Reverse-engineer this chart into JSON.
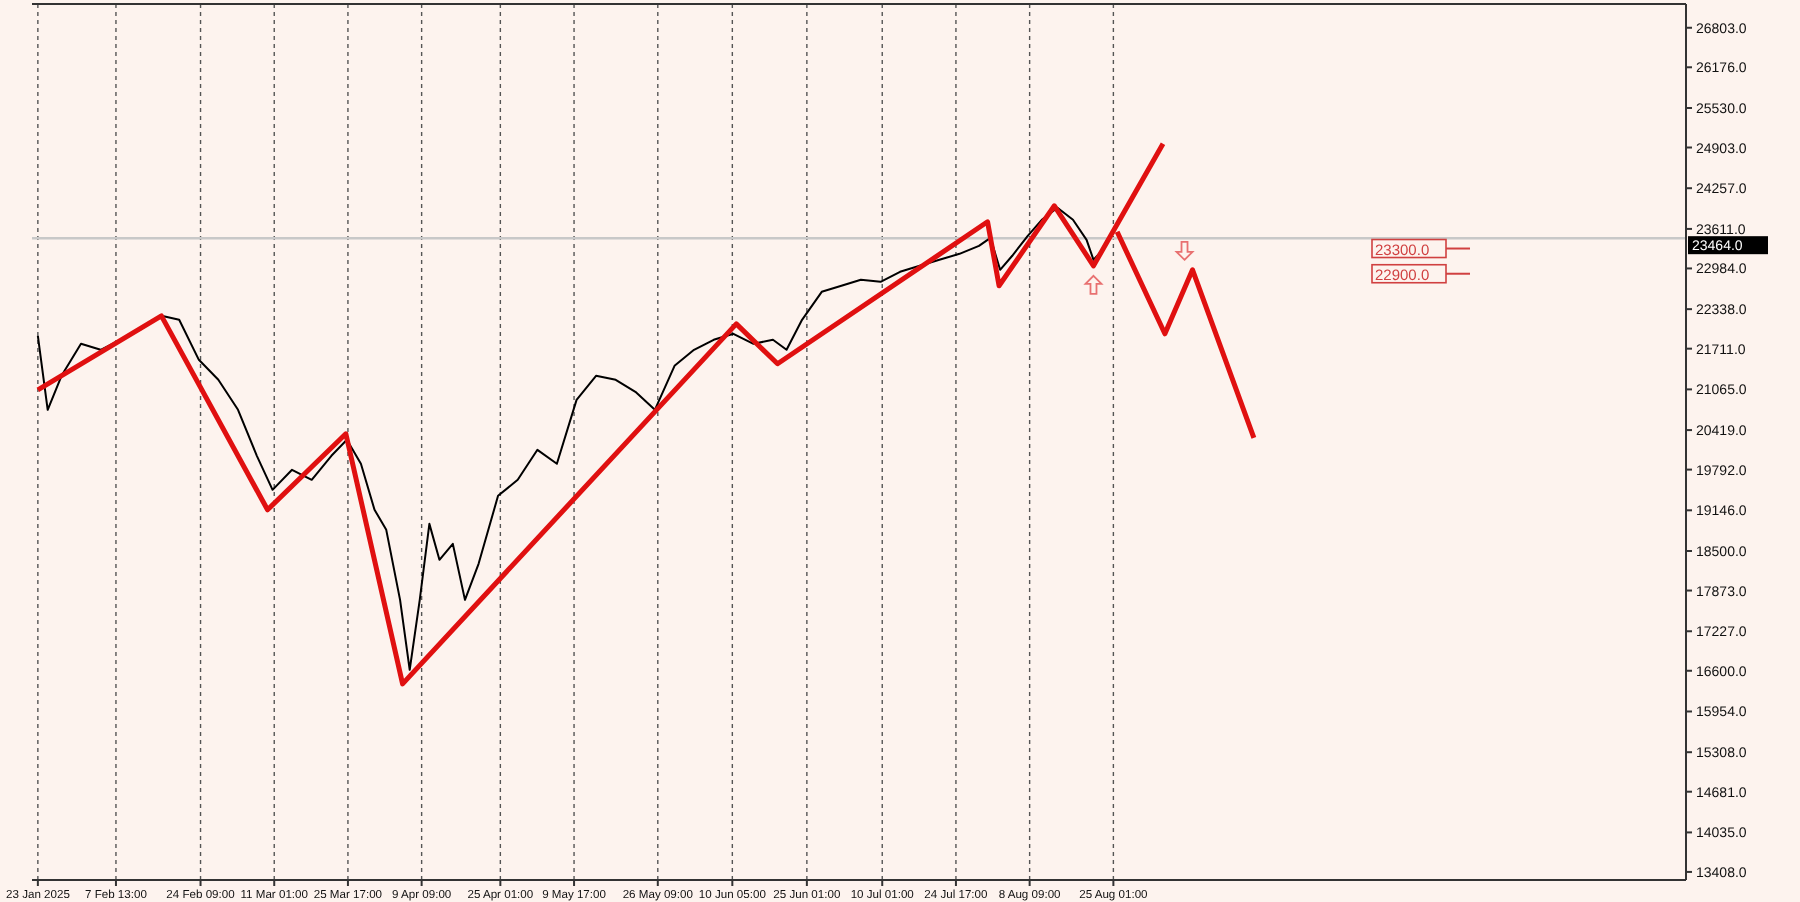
{
  "chart_data": {
    "type": "line",
    "xlim": [
      "2025-01-21T20:00",
      "2025-12-17T00:00"
    ],
    "xticks": [
      {
        "value": "2025-01-23",
        "label": "23 Jan 2025"
      },
      {
        "value": "2025-02-07T13:00",
        "label": "7 Feb 13:00"
      },
      {
        "value": "2025-02-24T09:00",
        "label": "24 Feb 09:00"
      },
      {
        "value": "2025-03-11T01:00",
        "label": "11 Mar 01:00"
      },
      {
        "value": "2025-03-25T17:00",
        "label": "25 Mar 17:00"
      },
      {
        "value": "2025-04-09T09:00",
        "label": "9 Apr 09:00"
      },
      {
        "value": "2025-04-25T01:00",
        "label": "25 Apr 01:00"
      },
      {
        "value": "2025-05-09T17:00",
        "label": "9 May 17:00"
      },
      {
        "value": "2025-05-26T09:00",
        "label": "26 May 09:00"
      },
      {
        "value": "2025-06-10T05:00",
        "label": "10 Jun 05:00"
      },
      {
        "value": "2025-06-25T01:00",
        "label": "25 Jun 01:00"
      },
      {
        "value": "2025-07-10T01:00",
        "label": "10 Jul 01:00"
      },
      {
        "value": "2025-07-24T17:00",
        "label": "24 Jul 17:00"
      },
      {
        "value": "2025-08-08T09:00",
        "label": "8 Aug 09:00"
      },
      {
        "value": "2025-08-25T01:00",
        "label": "25 Aug 01:00"
      }
    ],
    "ylim": [
      13280,
      27180
    ],
    "yticks": [
      {
        "value": 26803,
        "label": "26803.0"
      },
      {
        "value": 26176,
        "label": "26176.0"
      },
      {
        "value": 25530,
        "label": "25530.0"
      },
      {
        "value": 24903,
        "label": "24903.0"
      },
      {
        "value": 24257,
        "label": "24257.0"
      },
      {
        "value": 23611,
        "label": "23611.0"
      },
      {
        "value": 22984,
        "label": "22984.0"
      },
      {
        "value": 22338,
        "label": "22338.0"
      },
      {
        "value": 21711,
        "label": "21711.0"
      },
      {
        "value": 21065,
        "label": "21065.0"
      },
      {
        "value": 20419,
        "label": "20419.0"
      },
      {
        "value": 19792,
        "label": "19792.0"
      },
      {
        "value": 19146,
        "label": "19146.0"
      },
      {
        "value": 18500,
        "label": "18500.0"
      },
      {
        "value": 17873,
        "label": "17873.0"
      },
      {
        "value": 17227,
        "label": "17227.0"
      },
      {
        "value": 16600,
        "label": "16600.0"
      },
      {
        "value": 15954,
        "label": "15954.0"
      },
      {
        "value": 15308,
        "label": "15308.0"
      },
      {
        "value": 14681,
        "label": "14681.0"
      },
      {
        "value": 14035,
        "label": "14035.0"
      },
      {
        "value": 13408,
        "label": "13408.0"
      }
    ],
    "grid": "x",
    "series": [
      {
        "color": "#000000",
        "x": [
          "2025-01-23T00:00",
          "2025-01-24T23:00",
          "2025-01-27T17:00",
          "2025-01-31T14:00",
          "2025-02-04T12:00",
          "2025-02-08T10:00",
          "2025-02-12T07:00",
          "2025-02-16T14:00",
          "2025-02-20T03:00",
          "2025-02-24T01:00",
          "2025-02-27T22:00",
          "2025-03-03T20:00",
          "2025-03-07T14:00",
          "2025-03-10T17:00",
          "2025-03-14T14:00",
          "2025-03-18T12:00",
          "2025-03-22T10:00",
          "2025-03-25T12:00",
          "2025-03-28T07:00",
          "2025-03-31T00:00",
          "2025-04-02T08:00",
          "2025-04-05T02:00",
          "2025-04-07T00:00",
          "2025-04-09T00:00",
          "2025-04-10T22:00",
          "2025-04-12T22:00",
          "2025-04-15T14:00",
          "2025-04-18T00:00",
          "2025-04-20T17:00",
          "2025-04-24T14:00",
          "2025-04-28T12:00",
          "2025-05-02T10:00",
          "2025-05-06T07:00",
          "2025-05-10T05:00",
          "2025-05-14T02:00",
          "2025-05-18T00:00",
          "2025-05-21T22:00",
          "2025-05-25T19:00",
          "2025-05-29T17:00",
          "2025-06-02T14:00",
          "2025-06-06T12:00",
          "2025-06-10T10:00",
          "2025-06-14T10:00",
          "2025-06-18T07:00",
          "2025-06-21T00:00",
          "2025-06-24T02:00",
          "2025-06-28T00:00",
          "2025-07-01T22:00",
          "2025-07-05T19:00",
          "2025-07-09T17:00",
          "2025-07-13T14:00",
          "2025-07-17T12:00",
          "2025-07-21T10:00",
          "2025-07-25T10:00",
          "2025-07-29T07:00",
          "2025-07-31T14:00",
          "2025-08-02T12:00",
          "2025-08-04T22:00",
          "2025-08-08T00:00",
          "2025-08-10T19:00",
          "2025-08-13T22:00",
          "2025-08-17T00:00",
          "2025-08-19T17:00",
          "2025-08-21T02:00",
          "2025-08-22T14:00",
          "2025-08-24T00:00"
        ],
        "values": [
          21915,
          20741,
          21280,
          21788,
          21693,
          21852,
          22010,
          22232,
          22169,
          21534,
          21217,
          20741,
          20011,
          19471,
          19789,
          19630,
          20011,
          20265,
          19884,
          19154,
          18836,
          17725,
          16615,
          17725,
          18931,
          18360,
          18614,
          17725,
          18297,
          19376,
          19630,
          20106,
          19884,
          20899,
          21280,
          21217,
          21026,
          20741,
          21439,
          21693,
          21852,
          21947,
          21788,
          21852,
          21693,
          22169,
          22613,
          22709,
          22804,
          22772,
          22931,
          23026,
          23121,
          23216,
          23343,
          23470,
          22962,
          23185,
          23502,
          23756,
          23946,
          23756,
          23438,
          23121,
          23248,
          23464
        ]
      },
      {
        "color": "#e01010",
        "x": [
          "2025-01-23T00:00",
          "2025-02-16T14:00",
          "2025-03-09T17:00",
          "2025-03-25T07:00",
          "2025-04-05T14:00",
          "2025-06-11T00:00",
          "2025-06-19T05:00",
          "2025-07-31T00:00",
          "2025-08-02T07:00",
          "2025-08-13T07:00",
          "2025-08-21T02:00",
          "2025-09-03T22:00"
        ],
        "values": [
          21058,
          22232,
          19154,
          20360,
          16392,
          22105,
          21471,
          23724,
          22709,
          23978,
          23026,
          24962
        ]
      },
      {
        "color": "#e01010",
        "x": [
          "2025-08-25T19:00",
          "2025-09-04T07:00",
          "2025-09-09T19:00",
          "2025-09-22T00:00"
        ],
        "values": [
          23566,
          21947,
          22962,
          20296
        ]
      }
    ],
    "ref_lines": [
      {
        "axis": "y",
        "value": 23464,
        "label": "23464.0",
        "color": "#c8c8c8",
        "line_style": "solid"
      },
      {
        "axis": "y",
        "value": 23300,
        "label": "23300.0",
        "color": "#d04040"
      },
      {
        "axis": "y",
        "value": 22900,
        "label": "22900.0",
        "color": "#d04040"
      }
    ]
  }
}
